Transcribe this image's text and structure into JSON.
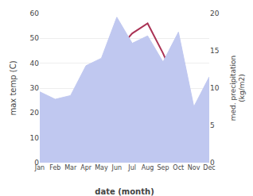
{
  "chart_data": {
    "type": "line",
    "categories": [
      "Jan",
      "Feb",
      "Mar",
      "Apr",
      "May",
      "Jun",
      "Jul",
      "Aug",
      "Sep",
      "Oct",
      "Nov",
      "Dec"
    ],
    "series": [
      {
        "type": "area",
        "axis": "y2",
        "color": "#c0c8f0",
        "values": [
          9.5,
          8.5,
          9,
          13,
          14,
          19.5,
          16,
          17,
          13.5,
          17.5,
          7.5,
          11.5
        ]
      },
      {
        "type": "line",
        "color": "#aa3355",
        "values": [
          16,
          17,
          19,
          23,
          33,
          45,
          52,
          56,
          44,
          30,
          19,
          17
        ]
      }
    ],
    "xlabel": "date (month)",
    "ylabel": "max temp (C)",
    "y2label": "med. precipitation\n(kg/m2)",
    "ylim": [
      0,
      60
    ],
    "yticks": [
      0,
      10,
      20,
      30,
      40,
      50,
      60
    ],
    "y2lim": [
      0,
      20
    ],
    "y2ticks": [
      0,
      5,
      10,
      15,
      20
    ],
    "grid": true
  }
}
